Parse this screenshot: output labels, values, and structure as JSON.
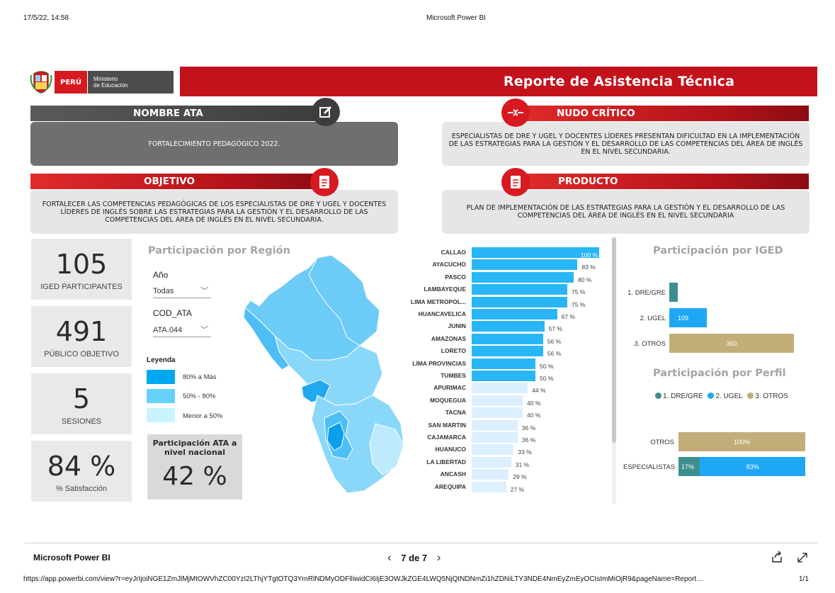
{
  "print": {
    "datetime": "17/5/22, 14:58",
    "app_title": "Microsoft Power BI",
    "url": "https://app.powerbi.com/view?r=eyJrIjoiNGE1ZmJlMjMtOWVhZC00YzI2LThjYTgtOTQ3YmRlNDMyODFlIiwidCI6IjE3OWJkZGE4LWQ5NjQtNDNmZi1hZDNiLTY3NDE4NmEyZmEyOCIsImMiOjR9&pageName=Report…",
    "page_count": "1/1"
  },
  "header": {
    "peru": "PERÚ",
    "ministry_line1": "Ministerio",
    "ministry_line2": "de Educación",
    "title": "Reporte de Asistencia Técnica"
  },
  "sections": {
    "nombre_ata": {
      "title": "NOMBRE ATA",
      "body": "FORTALECIMIENTO PEDAGÓGICO 2022."
    },
    "nudo_critico": {
      "title": "NUDO CRÍTICO",
      "body": "ESPECIALISTAS DE DRE Y UGEL Y DOCENTES LÍDERES PRESENTAN DIFICULTAD EN LA IMPLEMENTACIÓN DE LAS ESTRATEGIAS PARA LA GESTIÓN Y EL DESARROLLO DE LAS COMPETENCIAS DEL ÁREA DE INGLÉS EN EL NIVEL SECUNDARIA."
    },
    "objetivo": {
      "title": "OBJETIVO",
      "body": "FORTALECER LAS COMPETENCIAS PEDAGÓGICAS DE LOS ESPECIALISTAS DE DRE Y UGEL Y DOCENTES LÍDERES DE INGLÉS SOBRE LAS ESTRATEGIAS PARA LA GESTIÓN Y EL DESARROLLO DE LAS COMPETENCIAS DEL ÁREA DE INGLÉS EN EL NIVEL SECUNDARIA."
    },
    "producto": {
      "title": "PRODUCTO",
      "body": "PLAN DE IMPLEMENTACIÓN DE LAS ESTRATEGIAS PARA LA GESTIÓN Y EL DESARROLLO DE LAS COMPETENCIAS DEL ÁREA DE INGLÉS EN EL NIVEL SECUNDARIA"
    }
  },
  "kpis": [
    {
      "value": "105",
      "label": "IGED PARTICIPANTES"
    },
    {
      "value": "491",
      "label": "PÚBLICO OBJETIVO"
    },
    {
      "value": "5",
      "label": "SESIONES"
    },
    {
      "value": "84 %",
      "label": "% Satisfacción"
    }
  ],
  "region": {
    "title": "Participación por Región",
    "slicer_year_label": "Año",
    "slicer_year_value": "Todas",
    "slicer_ata_label": "COD_ATA",
    "slicer_ata_value": "ATA.044",
    "legend_title": "Leyenda",
    "legend": [
      {
        "label": "80% a Más",
        "color": "#00a8f0"
      },
      {
        "label": "50% - 80%",
        "color": "#66d2fa"
      },
      {
        "label": "Menor a 50%",
        "color": "#c9f3ff"
      }
    ],
    "national_title": "Participación ATA a nivel nacional",
    "national_value": "42 %"
  },
  "chart_data": [
    {
      "type": "bar",
      "orientation": "horizontal",
      "categories": [
        "CALLAO",
        "AYACUCHO",
        "PASCO",
        "LAMBAYEQUE",
        "LIMA METROPOL...",
        "HUANCAVELICA",
        "JUNIN",
        "AMAZONAS",
        "LORETO",
        "LIMA PROVINCIAS",
        "TUMBES",
        "APURIMAC",
        "MOQUEGUA",
        "TACNA",
        "SAN MARTIN",
        "CAJAMARCA",
        "HUANUCO",
        "LA LIBERTAD",
        "ANCASH",
        "AREQUIPA"
      ],
      "values": [
        100,
        83,
        80,
        75,
        75,
        67,
        57,
        56,
        56,
        50,
        50,
        44,
        40,
        40,
        36,
        36,
        33,
        31,
        29,
        27
      ],
      "labels": [
        "100 %",
        "83 %",
        "80 %",
        "75 %",
        "75 %",
        "67 %",
        "57 %",
        "56 %",
        "56 %",
        "50 %",
        "50 %",
        "44 %",
        "40 %",
        "40 %",
        "36 %",
        "36 %",
        "33 %",
        "31 %",
        "29 %",
        "27 %"
      ],
      "xlim": [
        0,
        100
      ],
      "colors": {
        "high": "#29b6f6",
        "mid": "#29b6f6",
        "low": "#dcefff"
      }
    },
    {
      "type": "bar",
      "orientation": "horizontal",
      "title": "Participación por IGED",
      "categories": [
        "1. DRE/GRE",
        "2. UGEL",
        "3. OTROS"
      ],
      "values": [
        22,
        109,
        360
      ],
      "labels": [
        "",
        "109",
        "360"
      ],
      "colors": [
        "#3e8e8f",
        "#1ea7f5",
        "#c3ae7a"
      ]
    },
    {
      "type": "bar",
      "orientation": "horizontal",
      "stacked": true,
      "title": "Participación por Perfil",
      "categories": [
        "OTROS",
        "ESPECIALISTAS"
      ],
      "series": [
        {
          "name": "1. DRE/GRE",
          "values": [
            0,
            17
          ],
          "color": "#3e8e8f"
        },
        {
          "name": "2. UGEL",
          "values": [
            0,
            83
          ],
          "color": "#1ea7f5"
        },
        {
          "name": "3. OTROS",
          "values": [
            100,
            0
          ],
          "color": "#c3ae7a"
        }
      ],
      "labels": {
        "OTROS": [
          "100%"
        ],
        "ESPECIALISTAS": [
          "17%",
          "83%"
        ]
      }
    }
  ],
  "footer": {
    "brand": "Microsoft Power BI",
    "page": "7 de 7"
  }
}
